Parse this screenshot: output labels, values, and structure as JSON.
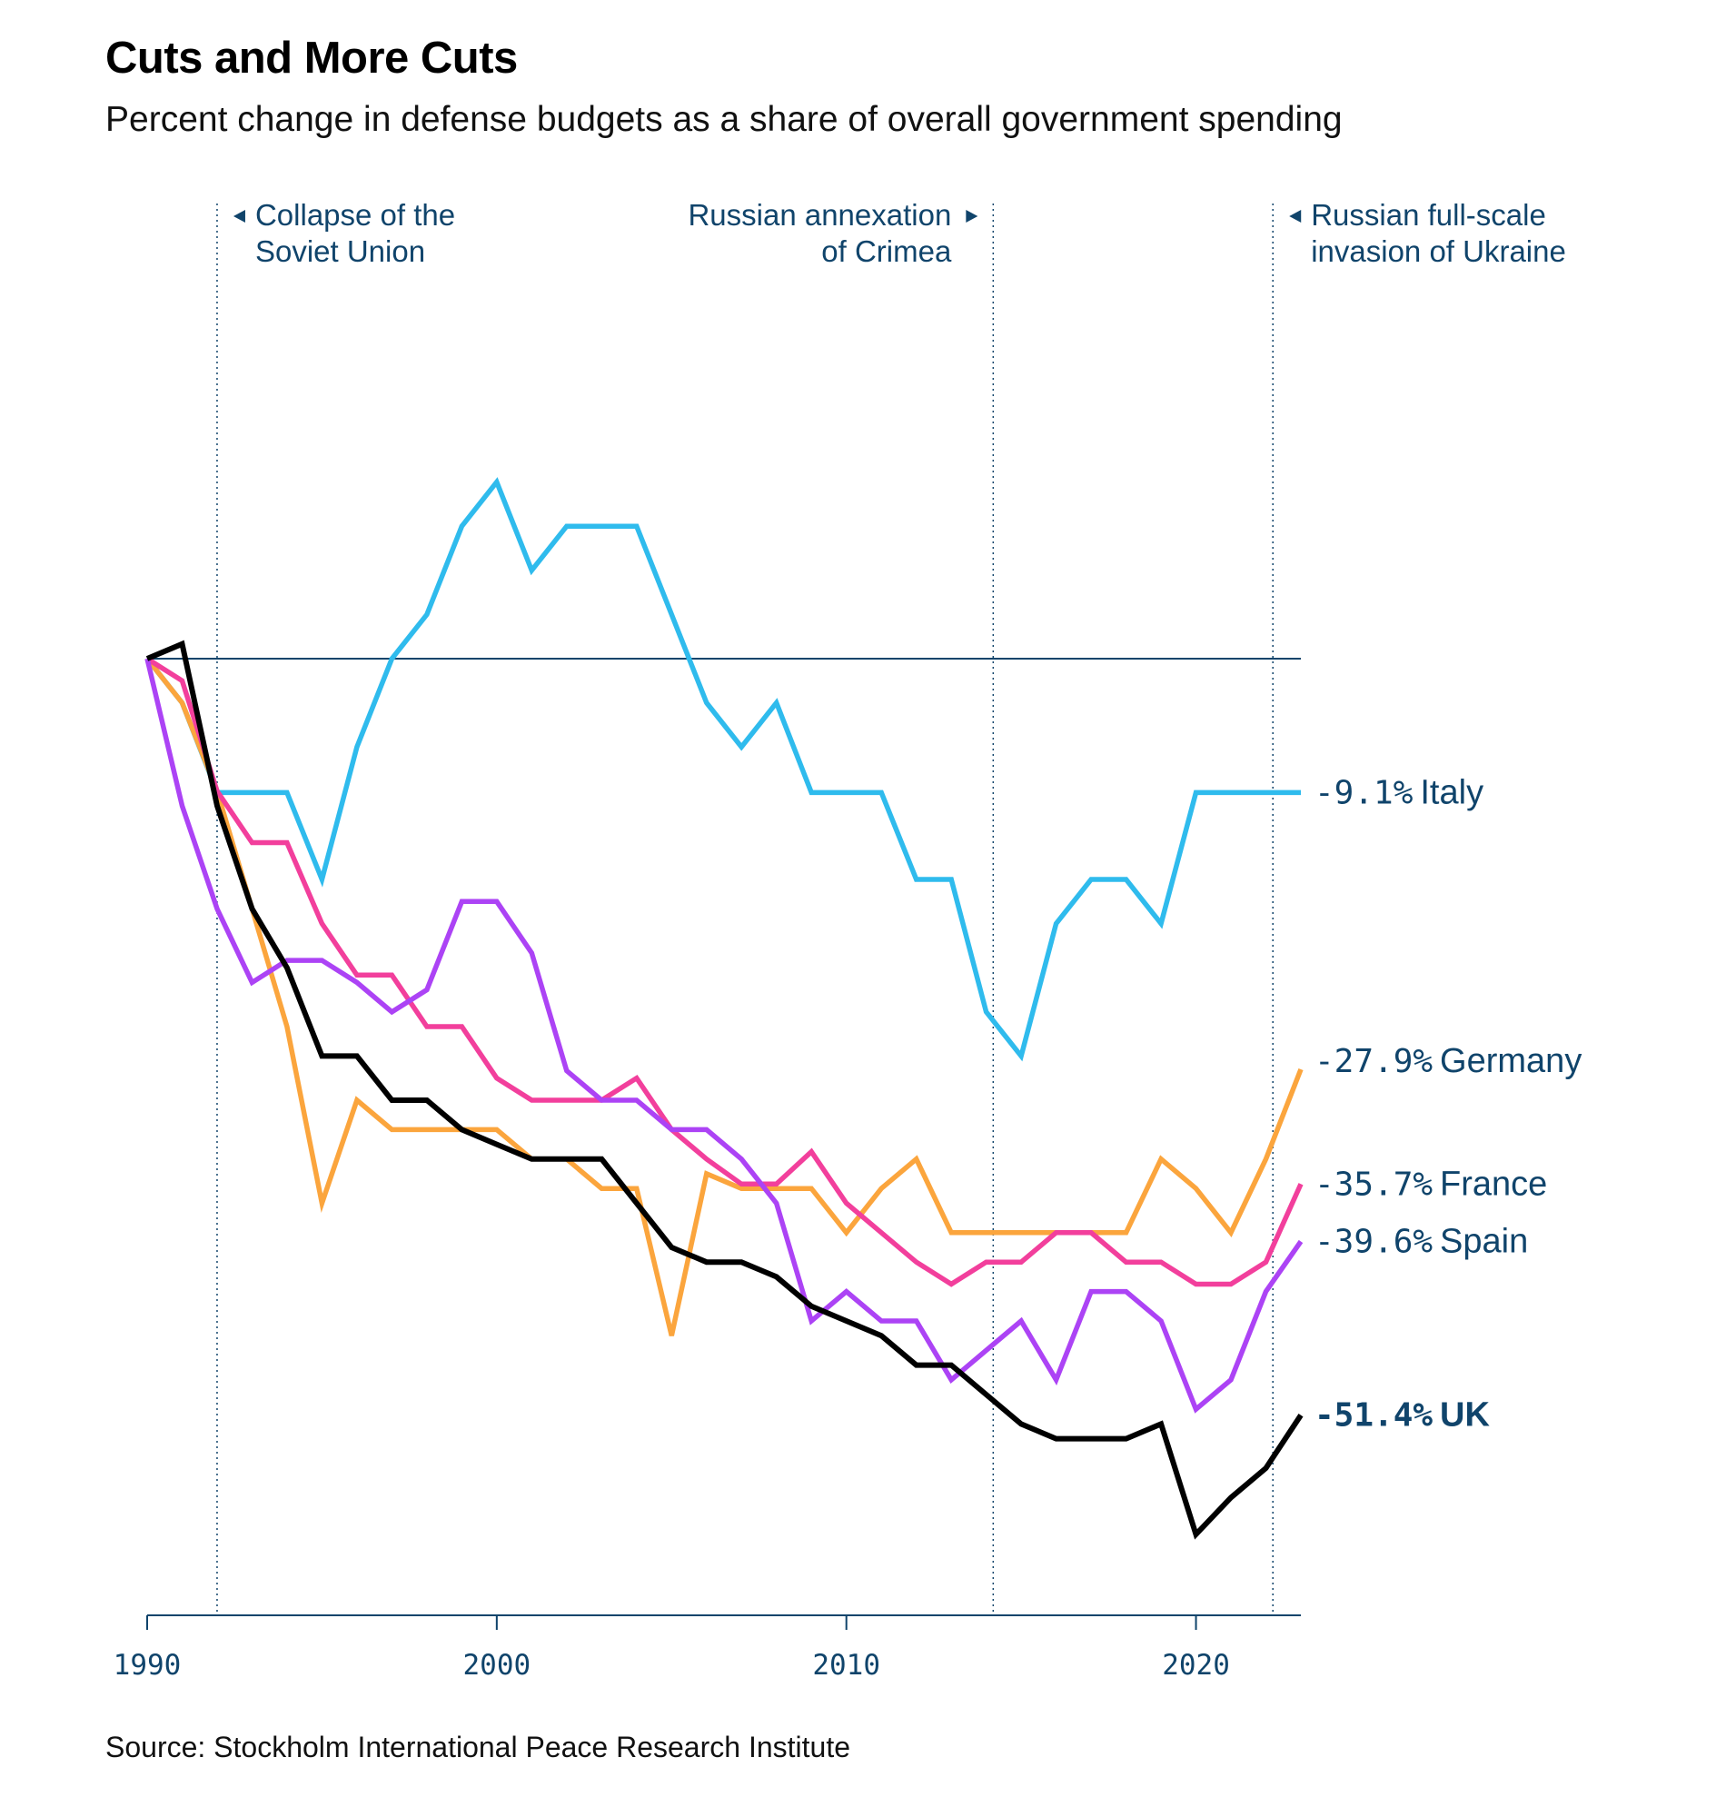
{
  "chart_data": {
    "type": "line",
    "title": "Cuts and More Cuts",
    "subtitle": "Percent change in defense budgets as a share of overall government spending",
    "source": "Source: Stockholm International Peace Research Institute",
    "x_ticks": [
      1990,
      2000,
      2010,
      2020
    ],
    "x_tick_labels": [
      "1990",
      "2000",
      "2010",
      "2020"
    ],
    "xlim": [
      1990,
      2023
    ],
    "ylim": [
      -65,
      25
    ],
    "baseline": 0,
    "annotations": [
      {
        "x": 1992,
        "arrow": "left",
        "lines": [
          "Collapse of the",
          "Soviet Union"
        ]
      },
      {
        "x": 2014.2,
        "arrow": "right",
        "lines": [
          "Russian annexation",
          "of Crimea"
        ]
      },
      {
        "x": 2022.2,
        "arrow": "left",
        "lines": [
          "Russian full-scale",
          "invasion of Ukraine"
        ]
      }
    ],
    "x": [
      1990,
      1991,
      1992,
      1993,
      1994,
      1995,
      1996,
      1997,
      1998,
      1999,
      2000,
      2001,
      2002,
      2003,
      2004,
      2005,
      2006,
      2007,
      2008,
      2009,
      2010,
      2011,
      2012,
      2013,
      2014,
      2015,
      2016,
      2017,
      2018,
      2019,
      2020,
      2021,
      2022,
      2023
    ],
    "series": [
      {
        "name": "Italy",
        "end_label": "-9.1%",
        "color": "#2fbbed",
        "bold": false,
        "values": [
          0,
          -3,
          -9.1,
          -9.1,
          -9.1,
          -15,
          -6,
          0,
          3,
          9,
          12,
          6,
          9,
          9,
          9,
          3,
          -3,
          -6,
          -3,
          -9.1,
          -9.1,
          -9.1,
          -15,
          -15,
          -24,
          -27,
          -18,
          -15,
          -15,
          -18,
          -9.1,
          -9.1,
          -9.1,
          -9.1
        ]
      },
      {
        "name": "Germany",
        "end_label": "-27.9%",
        "color": "#fba53d",
        "bold": false,
        "values": [
          0,
          -3,
          -9,
          -17,
          -25,
          -37,
          -30,
          -32,
          -32,
          -32,
          -32,
          -34,
          -34,
          -36,
          -36,
          -46,
          -35,
          -36,
          -36,
          -36,
          -39,
          -36,
          -34,
          -39,
          -39,
          -39,
          -39,
          -39,
          -39,
          -34,
          -36,
          -39,
          -34,
          -27.9
        ]
      },
      {
        "name": "France",
        "end_label": "-35.7%",
        "color": "#f23f9c",
        "bold": false,
        "values": [
          0,
          -1.5,
          -9,
          -12.5,
          -12.5,
          -18,
          -21.5,
          -21.5,
          -25,
          -25,
          -28.5,
          -30,
          -30,
          -30,
          -28.5,
          -32,
          -34,
          -35.7,
          -35.7,
          -33.5,
          -37,
          -39,
          -41,
          -42.5,
          -41,
          -41,
          -39,
          -39,
          -41,
          -41,
          -42.5,
          -42.5,
          -41,
          -35.7
        ]
      },
      {
        "name": "Spain",
        "end_label": "-39.6%",
        "color": "#ac43f5",
        "bold": false,
        "values": [
          0,
          -10,
          -17,
          -22,
          -20.5,
          -20.5,
          -22,
          -24,
          -22.5,
          -16.5,
          -16.5,
          -20,
          -28,
          -30,
          -30,
          -32,
          -32,
          -34,
          -37,
          -45,
          -43,
          -45,
          -45,
          -49,
          -47,
          -45,
          -49,
          -43,
          -43,
          -45,
          -51,
          -49,
          -43,
          -39.6
        ]
      },
      {
        "name": "UK",
        "end_label": "-51.4%",
        "color": "#000000",
        "bold": true,
        "values": [
          0,
          1,
          -10,
          -17,
          -21,
          -27,
          -27,
          -30,
          -30,
          -32,
          -33,
          -34,
          -34,
          -34,
          -37,
          -40,
          -41,
          -41,
          -42,
          -44,
          -45,
          -46,
          -48,
          -48,
          -50,
          -52,
          -53,
          -53,
          -53,
          -52,
          -59.5,
          -57,
          -55,
          -51.4
        ]
      }
    ]
  }
}
